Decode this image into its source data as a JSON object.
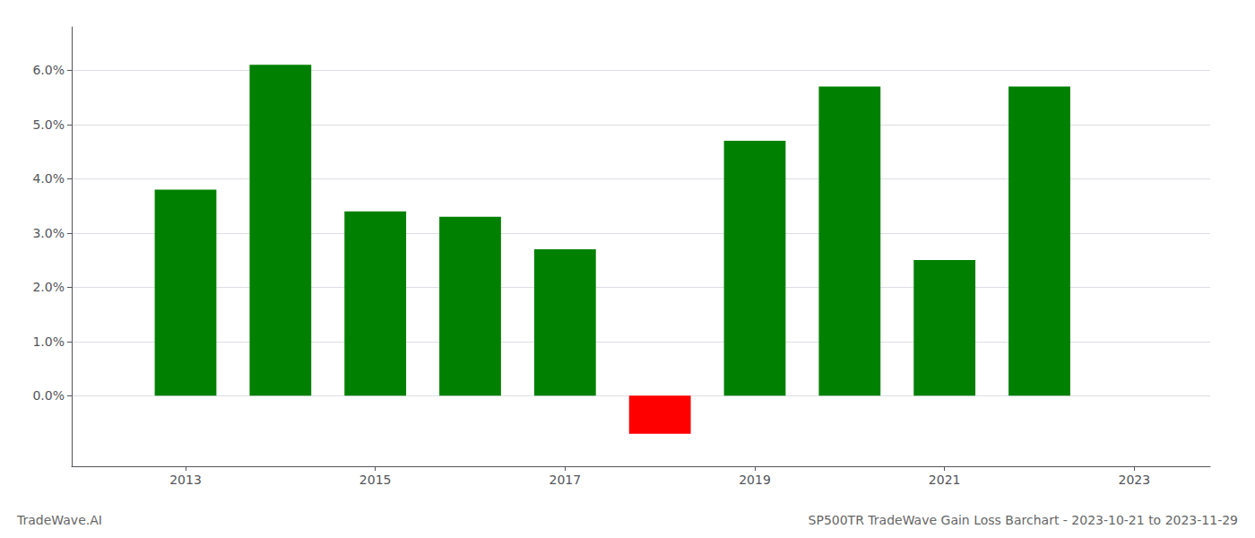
{
  "chart_data": {
    "type": "bar",
    "title": "SP500TR TradeWave Gain Loss Barchart - 2023-10-21 to 2023-11-29",
    "annotations": [
      "TradeWave.AI"
    ],
    "x": [
      2013,
      2014,
      2015,
      2016,
      2017,
      2018,
      2019,
      2020,
      2021,
      2022
    ],
    "values": [
      0.038,
      0.061,
      0.034,
      0.033,
      0.027,
      -0.007,
      0.047,
      0.057,
      0.025,
      0.057
    ],
    "colors": [
      "#008000",
      "#008000",
      "#008000",
      "#008000",
      "#008000",
      "#ff0000",
      "#008000",
      "#008000",
      "#008000",
      "#008000"
    ],
    "xlim": [
      2011.8,
      2023.8
    ],
    "xticks": [
      2013,
      2015,
      2017,
      2019,
      2021,
      2023
    ],
    "ylim": [
      -0.013,
      0.068
    ],
    "yticks": [
      {
        "value": 0.0,
        "label": "0.0%"
      },
      {
        "value": 0.01,
        "label": "1.0%"
      },
      {
        "value": 0.02,
        "label": "2.0%"
      },
      {
        "value": 0.03,
        "label": "3.0%"
      },
      {
        "value": 0.04,
        "label": "4.0%"
      },
      {
        "value": 0.05,
        "label": "5.0%"
      },
      {
        "value": 0.06,
        "label": "6.0%"
      }
    ],
    "grid": true
  }
}
